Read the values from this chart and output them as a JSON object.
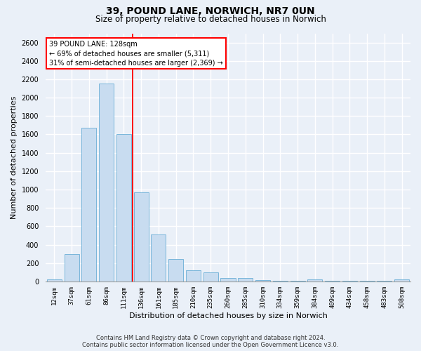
{
  "title_line1": "39, POUND LANE, NORWICH, NR7 0UN",
  "title_line2": "Size of property relative to detached houses in Norwich",
  "xlabel": "Distribution of detached houses by size in Norwich",
  "ylabel": "Number of detached properties",
  "categories": [
    "12sqm",
    "37sqm",
    "61sqm",
    "86sqm",
    "111sqm",
    "136sqm",
    "161sqm",
    "185sqm",
    "210sqm",
    "235sqm",
    "260sqm",
    "285sqm",
    "310sqm",
    "334sqm",
    "359sqm",
    "384sqm",
    "409sqm",
    "434sqm",
    "458sqm",
    "483sqm",
    "508sqm"
  ],
  "values": [
    20,
    300,
    1670,
    2150,
    1600,
    970,
    510,
    245,
    120,
    100,
    40,
    40,
    15,
    10,
    10,
    20,
    5,
    5,
    5,
    5,
    20
  ],
  "bar_color": "#c8dcf0",
  "bar_edge_color": "#6aaed6",
  "vline_x_index": 4.5,
  "annotation_line1": "39 POUND LANE: 128sqm",
  "annotation_line2": "← 69% of detached houses are smaller (5,311)",
  "annotation_line3": "31% of semi-detached houses are larger (2,369) →",
  "vline_color": "red",
  "annot_box_fc": "white",
  "annot_box_ec": "red",
  "ylim": [
    0,
    2700
  ],
  "yticks": [
    0,
    200,
    400,
    600,
    800,
    1000,
    1200,
    1400,
    1600,
    1800,
    2000,
    2200,
    2400,
    2600
  ],
  "bg_color": "#eaf0f8",
  "grid_color": "white",
  "title1_fontsize": 10,
  "title2_fontsize": 8.5,
  "tick_fontsize": 6.5,
  "axis_label_fontsize": 8,
  "annot_fontsize": 7,
  "footer_fontsize": 6,
  "footer_line1": "Contains HM Land Registry data © Crown copyright and database right 2024.",
  "footer_line2": "Contains public sector information licensed under the Open Government Licence v3.0."
}
